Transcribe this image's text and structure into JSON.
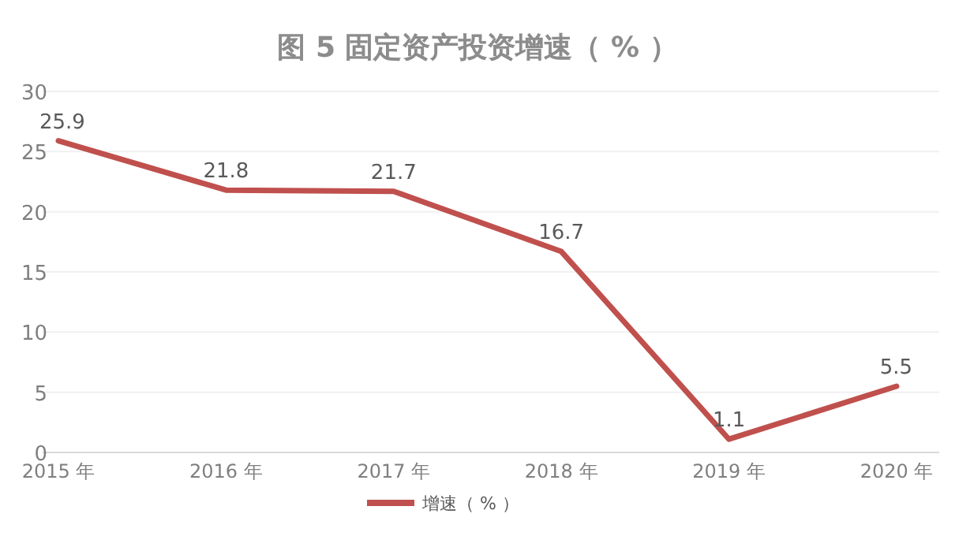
{
  "chart_data": {
    "type": "line",
    "title": "图 5  固定资产投资增速（ % ）",
    "categories": [
      "2015 年",
      "2016 年",
      "2017 年",
      "2018 年",
      "2019 年",
      "2020 年"
    ],
    "series": [
      {
        "name": "增速（ % ）",
        "color": "#c0504d",
        "values": [
          25.9,
          21.8,
          21.7,
          16.7,
          1.1,
          5.5
        ]
      }
    ],
    "ylim": [
      0,
      30
    ],
    "yticks": [
      0,
      5,
      10,
      15,
      20,
      25,
      30
    ],
    "grid": "y",
    "legend": "bottom",
    "data_labels": true,
    "marker": "none",
    "line_style": "solid"
  }
}
